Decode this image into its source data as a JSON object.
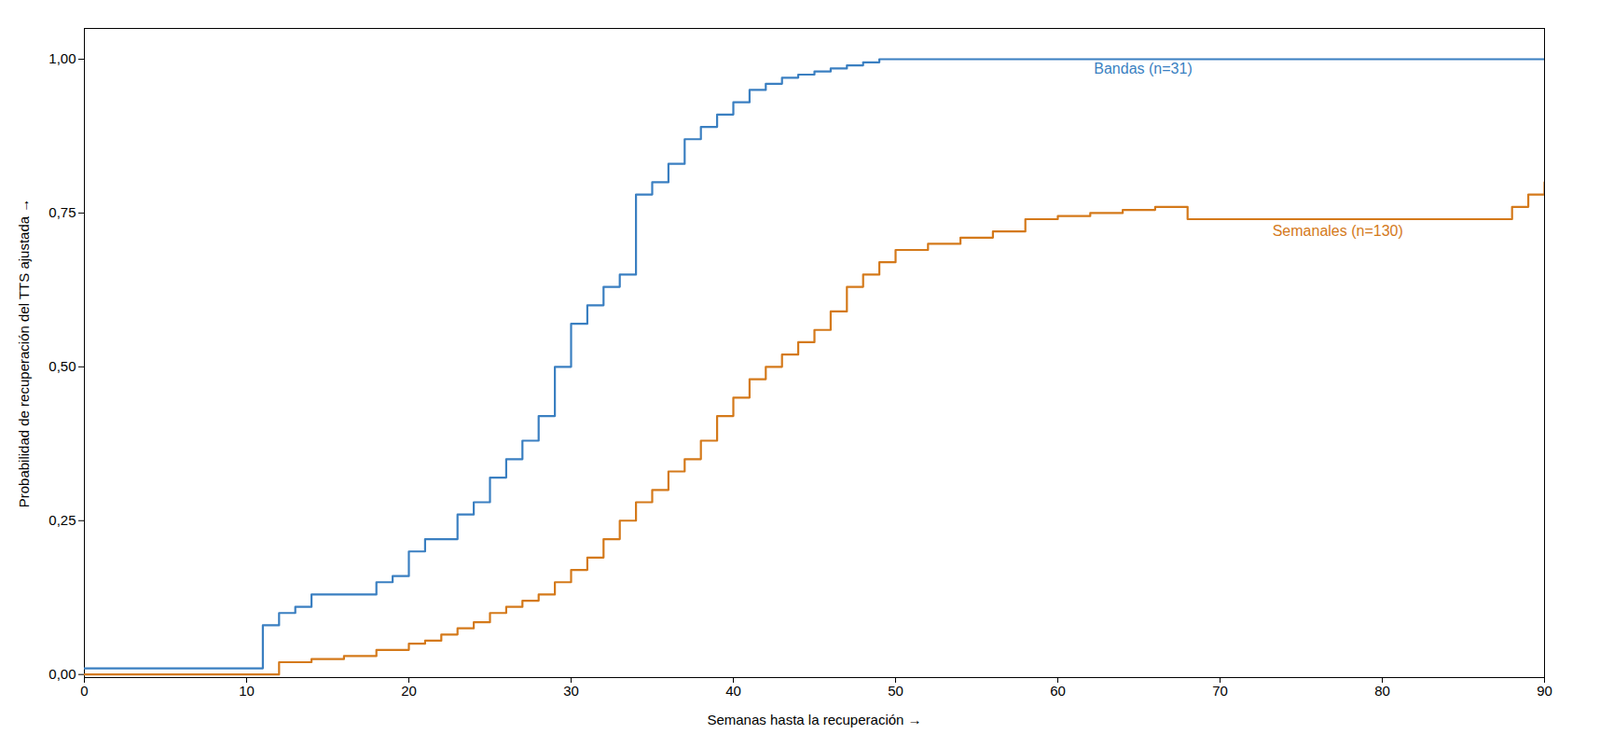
{
  "chart_data": {
    "type": "step",
    "xlabel": "Semanas hasta la recuperación",
    "ylabel": "Probabilidad de recuperación del TTS ajustada",
    "series": [
      {
        "name": "Bandas (n=31)",
        "color": "#3a7fc1",
        "x": [
          0,
          11,
          11,
          12,
          12,
          13,
          13,
          14,
          14,
          18,
          18,
          19,
          19,
          20,
          20,
          21,
          21,
          23,
          23,
          24,
          24,
          25,
          25,
          26,
          26,
          27,
          27,
          28,
          28,
          29,
          29,
          30,
          30,
          31,
          31,
          32,
          32,
          33,
          33,
          34,
          34,
          35,
          35,
          36,
          36,
          37,
          37,
          38,
          38,
          39,
          39,
          40,
          40,
          41,
          41,
          42,
          42,
          43,
          43,
          44,
          44,
          45,
          45,
          46,
          46,
          47,
          47,
          48,
          48,
          49,
          49,
          50,
          50,
          55,
          55,
          60,
          60,
          65,
          65,
          90
        ],
        "values": [
          0.01,
          0.01,
          0.08,
          0.08,
          0.1,
          0.1,
          0.11,
          0.11,
          0.13,
          0.13,
          0.15,
          0.15,
          0.16,
          0.16,
          0.2,
          0.2,
          0.22,
          0.22,
          0.26,
          0.26,
          0.28,
          0.28,
          0.32,
          0.32,
          0.35,
          0.35,
          0.38,
          0.38,
          0.42,
          0.42,
          0.5,
          0.5,
          0.57,
          0.57,
          0.6,
          0.6,
          0.63,
          0.63,
          0.65,
          0.65,
          0.78,
          0.78,
          0.8,
          0.8,
          0.83,
          0.83,
          0.87,
          0.87,
          0.89,
          0.89,
          0.91,
          0.91,
          0.93,
          0.93,
          0.95,
          0.95,
          0.96,
          0.96,
          0.97,
          0.97,
          0.975,
          0.975,
          0.98,
          0.98,
          0.985,
          0.985,
          0.99,
          0.99,
          0.995,
          0.995,
          1.0,
          1.0,
          1.0,
          1.0,
          1.0,
          1.0,
          1.0,
          1.0,
          1.0,
          1.0
        ]
      },
      {
        "name": "Semanales (n=130)",
        "color": "#d4791a",
        "x": [
          0,
          12,
          12,
          14,
          14,
          16,
          16,
          18,
          18,
          20,
          20,
          21,
          21,
          22,
          22,
          23,
          23,
          24,
          24,
          25,
          25,
          26,
          26,
          27,
          27,
          28,
          28,
          29,
          29,
          30,
          30,
          31,
          31,
          32,
          32,
          33,
          33,
          34,
          34,
          35,
          35,
          36,
          36,
          37,
          37,
          38,
          38,
          39,
          39,
          40,
          40,
          41,
          41,
          42,
          42,
          43,
          43,
          44,
          44,
          45,
          45,
          46,
          46,
          47,
          47,
          48,
          48,
          49,
          49,
          50,
          50,
          52,
          52,
          54,
          54,
          56,
          56,
          58,
          58,
          60,
          60,
          62,
          62,
          64,
          64,
          66,
          66,
          68,
          68,
          88,
          88,
          89,
          89,
          90,
          90
        ],
        "values": [
          0.0,
          0.0,
          0.02,
          0.02,
          0.025,
          0.025,
          0.03,
          0.03,
          0.04,
          0.04,
          0.05,
          0.05,
          0.055,
          0.055,
          0.065,
          0.065,
          0.075,
          0.075,
          0.085,
          0.085,
          0.1,
          0.1,
          0.11,
          0.11,
          0.12,
          0.12,
          0.13,
          0.13,
          0.15,
          0.15,
          0.17,
          0.17,
          0.19,
          0.19,
          0.22,
          0.22,
          0.25,
          0.25,
          0.28,
          0.28,
          0.3,
          0.3,
          0.33,
          0.33,
          0.35,
          0.35,
          0.38,
          0.38,
          0.42,
          0.42,
          0.45,
          0.45,
          0.48,
          0.48,
          0.5,
          0.5,
          0.52,
          0.52,
          0.54,
          0.54,
          0.56,
          0.56,
          0.59,
          0.59,
          0.63,
          0.63,
          0.65,
          0.65,
          0.67,
          0.67,
          0.69,
          0.69,
          0.7,
          0.7,
          0.71,
          0.71,
          0.72,
          0.72,
          0.74,
          0.74,
          0.745,
          0.745,
          0.75,
          0.75,
          0.755,
          0.755,
          0.76,
          0.76,
          0.74,
          0.74,
          0.76,
          0.76,
          0.78,
          0.78,
          0.8
        ]
      }
    ],
    "annotations": [
      {
        "text": "Bandas (n=31)",
        "x": 62,
        "y": 0.985
      },
      {
        "text": "Semanales (n=130)",
        "x": 73,
        "y": 0.72
      }
    ],
    "xlim": [
      0,
      90
    ],
    "ylim": [
      -0.005,
      1.05
    ],
    "xticks": [
      0,
      10,
      20,
      30,
      40,
      50,
      60,
      70,
      80,
      90
    ],
    "yticks": [
      {
        "value": 0.0,
        "label": "0,00"
      },
      {
        "value": 0.25,
        "label": "0,25"
      },
      {
        "value": 0.5,
        "label": "0,50"
      },
      {
        "value": 0.75,
        "label": "0,75"
      },
      {
        "value": 1.0,
        "label": "1,00"
      }
    ],
    "grid": false
  }
}
